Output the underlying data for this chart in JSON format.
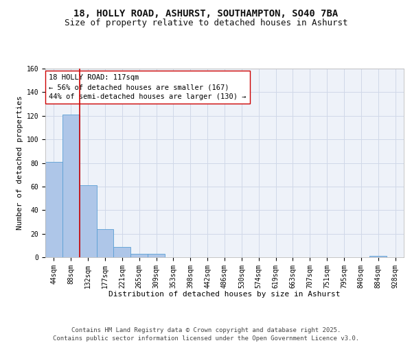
{
  "title_line1": "18, HOLLY ROAD, ASHURST, SOUTHAMPTON, SO40 7BA",
  "title_line2": "Size of property relative to detached houses in Ashurst",
  "xlabel": "Distribution of detached houses by size in Ashurst",
  "ylabel": "Number of detached properties",
  "bin_labels": [
    "44sqm",
    "88sqm",
    "132sqm",
    "177sqm",
    "221sqm",
    "265sqm",
    "309sqm",
    "353sqm",
    "398sqm",
    "442sqm",
    "486sqm",
    "530sqm",
    "574sqm",
    "619sqm",
    "663sqm",
    "707sqm",
    "751sqm",
    "795sqm",
    "840sqm",
    "884sqm",
    "928sqm"
  ],
  "bar_heights": [
    81,
    121,
    61,
    24,
    9,
    3,
    3,
    0,
    0,
    0,
    0,
    0,
    0,
    0,
    0,
    0,
    0,
    0,
    0,
    1,
    0
  ],
  "bar_color": "#aec6e8",
  "bar_edge_color": "#5a9fd4",
  "grid_color": "#d0d8e8",
  "background_color": "#eef2f9",
  "vline_color": "#cc0000",
  "vline_x_index": 2,
  "annotation_text": "18 HOLLY ROAD: 117sqm\n← 56% of detached houses are smaller (167)\n44% of semi-detached houses are larger (130) →",
  "annotation_box_color": "#ffffff",
  "annotation_border_color": "#cc0000",
  "ylim": [
    0,
    160
  ],
  "yticks": [
    0,
    20,
    40,
    60,
    80,
    100,
    120,
    140,
    160
  ],
  "footer": "Contains HM Land Registry data © Crown copyright and database right 2025.\nContains public sector information licensed under the Open Government Licence v3.0.",
  "title_fontsize": 10,
  "subtitle_fontsize": 9,
  "axis_label_fontsize": 8,
  "tick_fontsize": 7,
  "annotation_fontsize": 7.5,
  "footer_fontsize": 6.5
}
